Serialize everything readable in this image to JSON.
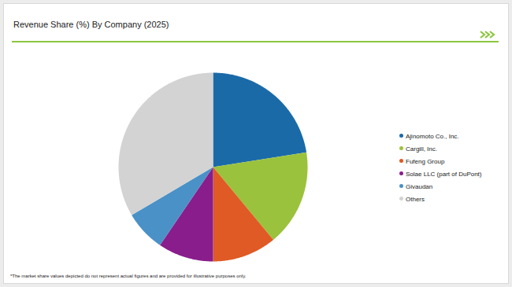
{
  "chart_data": {
    "type": "pie",
    "title": "Revenue Share (%) By Company (2025)",
    "categories": [
      "Ajinomoto Co., Inc.",
      "Cargill, Inc.",
      "Fufeng Group",
      "Solae LLC (part of DuPont)",
      "Givaudan",
      "Others"
    ],
    "values": [
      22.5,
      16.5,
      11,
      9.5,
      7,
      33.5
    ],
    "colors": [
      "#1b6aa8",
      "#9bc23c",
      "#df5a24",
      "#8a1d8c",
      "#4a91c7",
      "#d3d3d3"
    ],
    "legend": "right",
    "caption": "*The market share values depicted do not represent actual figures and are provided for illustrative purposes only."
  }
}
